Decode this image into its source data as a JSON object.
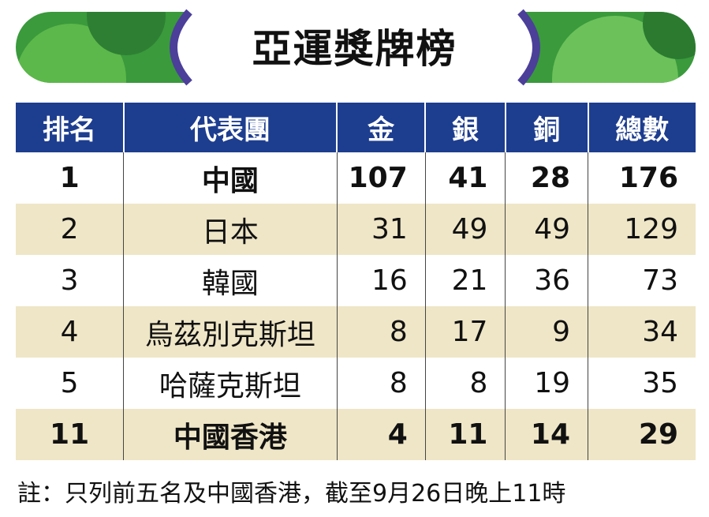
{
  "header": {
    "title": "亞運獎牌榜"
  },
  "table": {
    "columns": [
      "排名",
      "代表團",
      "金",
      "銀",
      "銅",
      "總數"
    ],
    "rows": [
      [
        1,
        "中國",
        107,
        41,
        28,
        176
      ],
      [
        2,
        "日本",
        31,
        49,
        49,
        129
      ],
      [
        3,
        "韓國",
        16,
        21,
        36,
        73
      ],
      [
        4,
        "烏茲別克斯坦",
        8,
        17,
        9,
        34
      ],
      [
        5,
        "哈薩克斯坦",
        8,
        8,
        19,
        35
      ],
      [
        11,
        "中國香港",
        4,
        11,
        14,
        29
      ]
    ]
  },
  "footnote": "註：只列前五名及中國香港，截至9月26日晚上11時"
}
